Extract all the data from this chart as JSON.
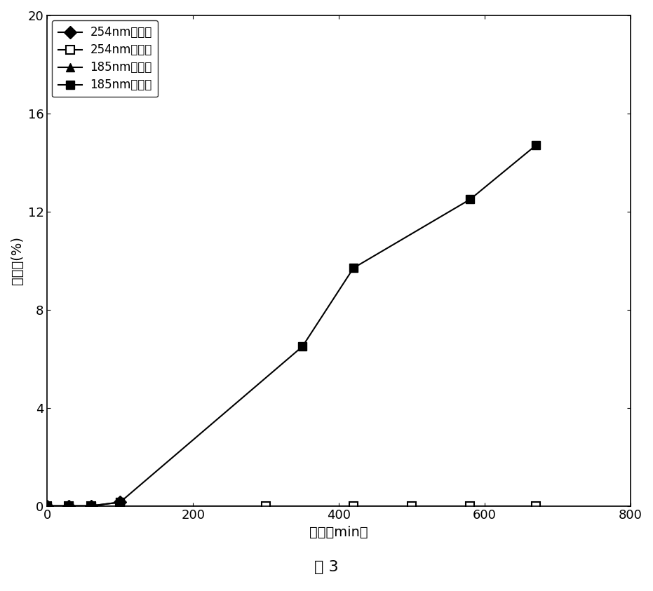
{
  "series": [
    {
      "label": "254nm通氮气",
      "x": [
        0,
        30,
        60,
        100
      ],
      "y": [
        0,
        0,
        0,
        0.15
      ],
      "marker": "D",
      "marker_filled": true,
      "linestyle": "-",
      "color": "#000000"
    },
    {
      "label": "254nm通氧气",
      "x": [
        0,
        30,
        60,
        100,
        300,
        420,
        500,
        580,
        670
      ],
      "y": [
        0,
        0,
        0,
        0,
        0,
        0,
        0,
        0,
        0
      ],
      "marker": "s",
      "marker_filled": false,
      "linestyle": "-",
      "color": "#000000"
    },
    {
      "label": "185nm通氧气",
      "x": [
        0,
        30,
        60
      ],
      "y": [
        0,
        0,
        0
      ],
      "marker": "^",
      "marker_filled": true,
      "linestyle": "-",
      "color": "#000000"
    },
    {
      "label": "185nm通氮气",
      "x": [
        0,
        30,
        60,
        100,
        350,
        420,
        580,
        670
      ],
      "y": [
        0,
        0,
        0,
        0.15,
        6.5,
        9.7,
        12.5,
        14.7
      ],
      "marker": "s",
      "marker_filled": true,
      "linestyle": "-",
      "color": "#000000"
    }
  ],
  "xlabel": "时间（min）",
  "ylabel": "脱氟率(%)",
  "figure_label": "图 3",
  "xlim": [
    0,
    800
  ],
  "ylim": [
    0,
    20
  ],
  "xticks": [
    0,
    200,
    400,
    600,
    800
  ],
  "yticks": [
    0,
    4,
    8,
    12,
    16,
    20
  ],
  "background_color": "#ffffff",
  "label_fontsize": 14,
  "tick_fontsize": 13,
  "legend_fontsize": 12,
  "figure_label_fontsize": 16
}
